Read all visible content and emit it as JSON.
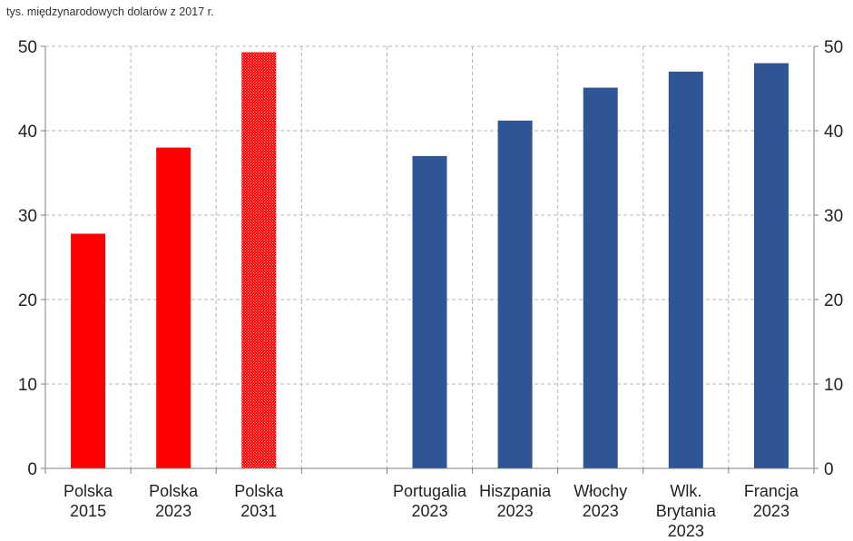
{
  "chart_data": {
    "type": "bar",
    "unit_label": "tys. międzynarodowych dolarów  z 2017 r.",
    "ylim": [
      0,
      50
    ],
    "yticks": [
      0,
      10,
      20,
      30,
      40,
      50
    ],
    "secondary_y_axis": true,
    "grid": true,
    "legend": "none",
    "categories": [
      {
        "lines": [
          "Polska",
          "2015"
        ],
        "value": 27.8,
        "color": "#ff0000",
        "pattern": "solid"
      },
      {
        "lines": [
          "Polska",
          "2023"
        ],
        "value": 38.0,
        "color": "#ff0000",
        "pattern": "solid"
      },
      {
        "lines": [
          "Polska",
          "2031"
        ],
        "value": 49.3,
        "color": "#ff0000",
        "pattern": "dotted"
      },
      {
        "lines": [
          "",
          ""
        ],
        "value": null,
        "color": null,
        "pattern": "none"
      },
      {
        "lines": [
          "Portugalia",
          "2023"
        ],
        "value": 37.0,
        "color": "#2f5597",
        "pattern": "solid"
      },
      {
        "lines": [
          "Hiszpania",
          "2023"
        ],
        "value": 41.2,
        "color": "#2f5597",
        "pattern": "solid"
      },
      {
        "lines": [
          "Włochy",
          "2023"
        ],
        "value": 45.1,
        "color": "#2f5597",
        "pattern": "solid"
      },
      {
        "lines": [
          "Wlk.",
          "Brytania",
          "2023"
        ],
        "value": 47.0,
        "color": "#2f5597",
        "pattern": "solid"
      },
      {
        "lines": [
          "Francja",
          "2023"
        ],
        "value": 48.0,
        "color": "#2f5597",
        "pattern": "solid"
      }
    ]
  }
}
